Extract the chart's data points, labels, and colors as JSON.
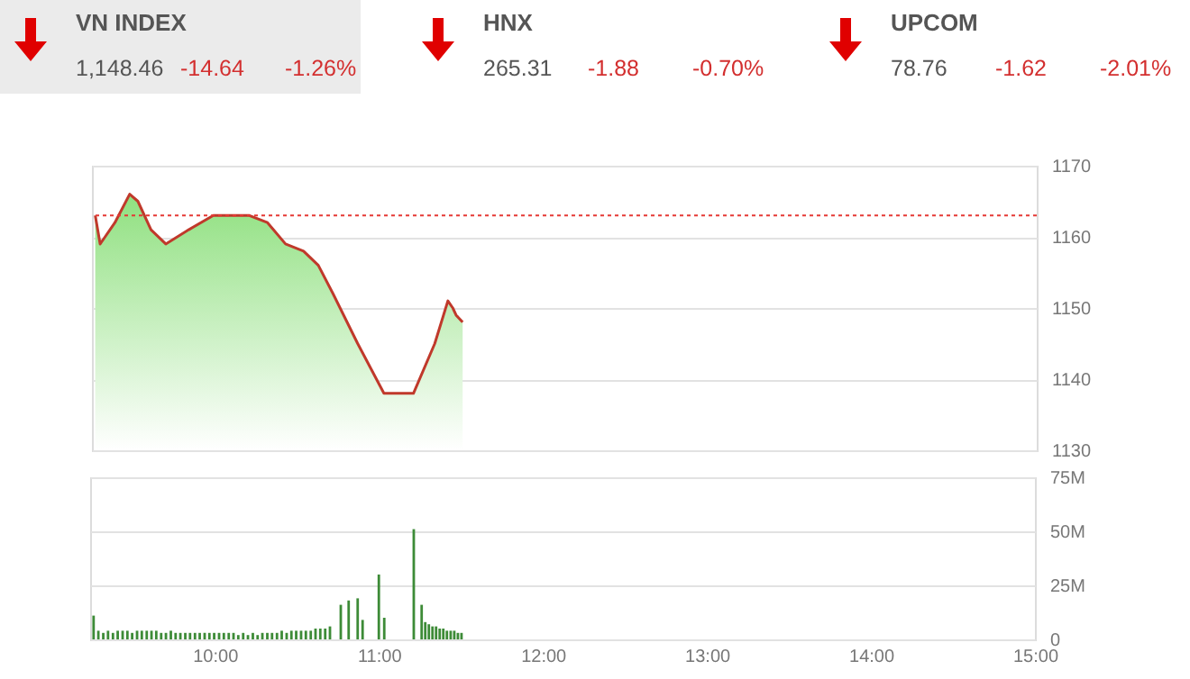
{
  "chart_data": [
    {
      "type": "other",
      "annotations": [
        "VN INDEX",
        "1,148.46",
        "-14.64",
        "-1.26%",
        "HNX",
        "265.31",
        "-1.88",
        "-0.70%",
        "UPCOM",
        "78.76",
        "-1.62",
        "-2.01%"
      ]
    },
    {
      "type": "area",
      "x": [
        9.26,
        9.29,
        9.32,
        9.38,
        9.47,
        9.52,
        9.6,
        9.69,
        9.83,
        9.98,
        10.09,
        10.2,
        10.31,
        10.42,
        10.53,
        10.62,
        10.71,
        10.86,
        11.02,
        11.2,
        11.33,
        11.41,
        11.44,
        11.46,
        11.5
      ],
      "series": [
        {
          "color": "#8fe07f",
          "values": [
            1163,
            1159,
            1160,
            1162,
            1166,
            1165,
            1161,
            1159,
            1161,
            1163,
            1163,
            1163,
            1162,
            1159,
            1158,
            1156,
            1152,
            1145,
            1138,
            1138,
            1145,
            1151,
            1150,
            1149,
            1148
          ]
        }
      ],
      "xlim": [
        9.24,
        15
      ],
      "ylim": [
        1130,
        1170
      ],
      "yticks": [
        1130,
        1140,
        1150,
        1160,
        1170
      ],
      "grid": "y",
      "tick_labels": "y",
      "ref_lines": [
        {
          "axis": "y",
          "value": 1163,
          "color": "#e53935",
          "line_style": "dotted"
        }
      ]
    },
    {
      "type": "bar",
      "x": [
        9.261,
        9.29,
        9.32,
        9.349,
        9.379,
        9.408,
        9.438,
        9.467,
        9.496,
        9.526,
        9.555,
        9.585,
        9.614,
        9.643,
        9.673,
        9.702,
        9.732,
        9.761,
        9.79,
        9.82,
        9.849,
        9.879,
        9.908,
        9.938,
        9.967,
        9.996,
        10.026,
        10.055,
        10.085,
        10.114,
        10.143,
        10.173,
        10.202,
        10.232,
        10.261,
        10.29,
        10.32,
        10.349,
        10.379,
        10.408,
        10.438,
        10.467,
        10.496,
        10.526,
        10.555,
        10.585,
        10.614,
        10.643,
        10.673,
        10.702,
        10.768,
        10.816,
        10.871,
        10.901,
        11.0,
        11.033,
        11.213,
        11.261,
        11.283,
        11.305,
        11.327,
        11.349,
        11.371,
        11.393,
        11.415,
        11.438,
        11.46,
        11.482,
        11.504
      ],
      "series": [
        {
          "color": "#3d8b37",
          "values": [
            11,
            4,
            3,
            4,
            3,
            4,
            4,
            4,
            3,
            4,
            4,
            4,
            4,
            4,
            3,
            3,
            4,
            3,
            3,
            3,
            3,
            3,
            3,
            3,
            3,
            3,
            3,
            3,
            3,
            3,
            2,
            3,
            2,
            3,
            2,
            3,
            3,
            3,
            3,
            4,
            3,
            4,
            4,
            4,
            4,
            4,
            5,
            5,
            5,
            6,
            16,
            18,
            19,
            9,
            30,
            10,
            51,
            16,
            8,
            7,
            6,
            6,
            5,
            5,
            4,
            4,
            4,
            3,
            3
          ]
        }
      ],
      "xlim": [
        9.24,
        15
      ],
      "xticks": [
        {
          "value": 10,
          "label": "10:00"
        },
        {
          "value": 11,
          "label": "11:00"
        },
        {
          "value": 12,
          "label": "12:00"
        },
        {
          "value": 13,
          "label": "13:00"
        },
        {
          "value": 14,
          "label": "14:00"
        },
        {
          "value": 15,
          "label": "15:00"
        }
      ],
      "ylim": [
        0,
        75
      ],
      "yticks": [
        {
          "value": 0,
          "label": "0"
        },
        {
          "value": 25,
          "label": "25M"
        },
        {
          "value": 50,
          "label": "50M"
        },
        {
          "value": 75,
          "label": "75M"
        }
      ],
      "grid": "y"
    }
  ]
}
